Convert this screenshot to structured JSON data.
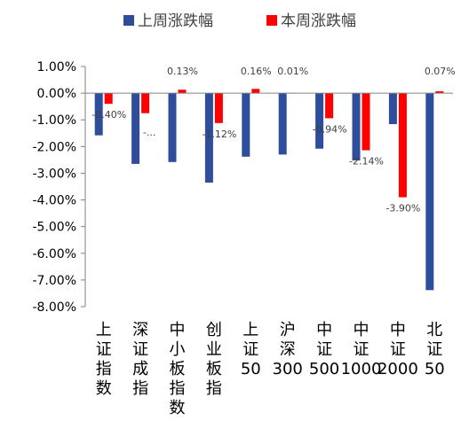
{
  "colors": {
    "prev": "#2E4E9B",
    "curr": "#FF0000",
    "axis": "#808080",
    "text": "#000000",
    "label": "#404040"
  },
  "chart_data": {
    "type": "bar",
    "title": "",
    "xlabel": "",
    "ylabel": "",
    "categories": [
      "上证指数",
      "深证成指",
      "中小板指数",
      "创业板指",
      "上证50",
      "沪深300",
      "中证500",
      "中证1000",
      "中证2000",
      "北证50"
    ],
    "series": [
      {
        "name": "上周涨跌幅",
        "color": "#2E4E9B",
        "values": [
          -1.58,
          -2.65,
          -2.58,
          -3.35,
          -2.38,
          -2.3,
          -2.08,
          -2.52,
          -1.16,
          -7.38
        ]
      },
      {
        "name": "本周涨跌幅",
        "color": "#FF0000",
        "values": [
          -0.4,
          -0.75,
          0.13,
          -1.12,
          0.16,
          0.01,
          -0.94,
          -2.14,
          -3.9,
          0.07
        ]
      }
    ],
    "data_labels": [
      "-0.40%",
      "-...",
      "0.13%",
      "-1.12%",
      "0.16%",
      "0.01%",
      "-0.94%",
      "-2.14%",
      "-3.90%",
      "0.07%"
    ],
    "ylim": [
      -8,
      1
    ],
    "y_tick_labels": [
      "1.00%",
      "0.00%",
      "-1.00%",
      "-2.00%",
      "-3.00%",
      "-4.00%",
      "-5.00%",
      "-6.00%",
      "-7.00%",
      "-8.00%"
    ],
    "y_ticks": [
      1,
      0,
      -1,
      -2,
      -3,
      -4,
      -5,
      -6,
      -7,
      -8
    ],
    "legend_position": "top",
    "grid": false
  }
}
